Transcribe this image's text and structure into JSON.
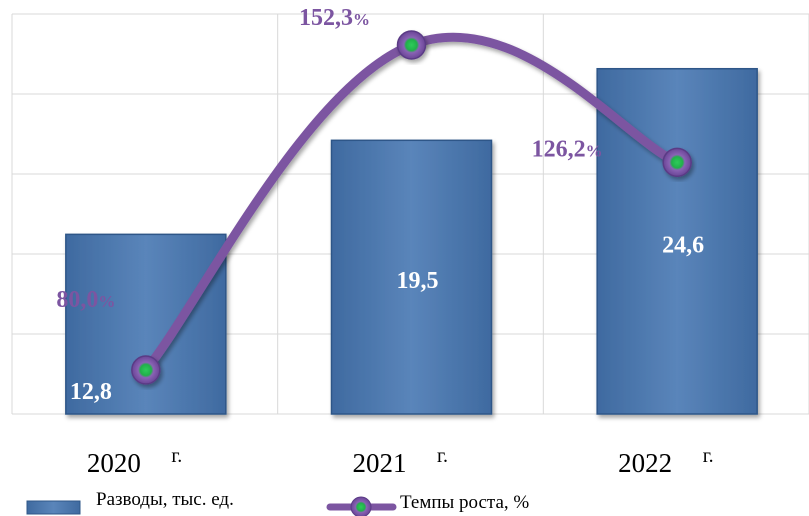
{
  "chart_data": {
    "type": "bar",
    "categories": [
      "2020",
      "2021",
      "2022"
    ],
    "category_suffix": "г.",
    "bar_series": {
      "name": "Разводы, тыс. ед.",
      "values": [
        12.8,
        19.5,
        24.6
      ],
      "labels": [
        "12,8",
        "19,5",
        "24,6"
      ],
      "color": "#4f79ad"
    },
    "line_series": {
      "name": "Темпы роста, %",
      "values": [
        80.0,
        152.3,
        126.2
      ],
      "labels": [
        "80,0",
        "152,3",
        "126,2"
      ],
      "unit": "%",
      "color": "#7c55a1",
      "marker_color": "#22b04b"
    },
    "grid": true,
    "legend_position": "bottom-left"
  }
}
